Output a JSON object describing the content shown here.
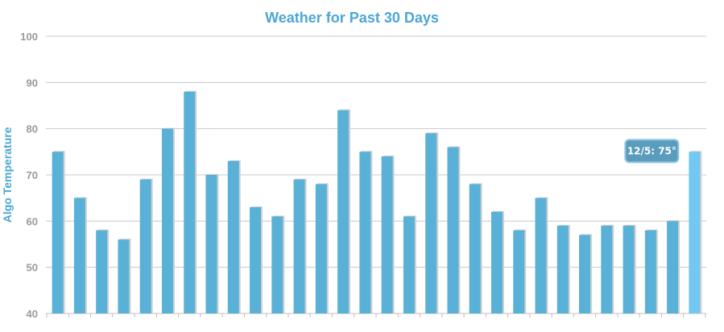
{
  "chart_data": {
    "type": "bar",
    "title": "Weather for Past 30 Days",
    "xlabel": "",
    "ylabel": "Algo Temperature",
    "ylim": [
      40,
      100
    ],
    "yticks": [
      "40",
      "50",
      "60",
      "70",
      "80",
      "90",
      "100"
    ],
    "grid": true,
    "categories": [
      "",
      "",
      "",
      "",
      "",
      "",
      "",
      "",
      "",
      "",
      "",
      "",
      "",
      "",
      "",
      "",
      "",
      "",
      "",
      "",
      "",
      "",
      "",
      "",
      "",
      "",
      "",
      "",
      "",
      ""
    ],
    "values": [
      75,
      65,
      58,
      56,
      69,
      80,
      88,
      70,
      73,
      63,
      61,
      69,
      68,
      84,
      75,
      74,
      61,
      79,
      76,
      68,
      62,
      58,
      65,
      59,
      57,
      59,
      59,
      58,
      60,
      75
    ],
    "highlight_index": 29,
    "tooltip": {
      "text": "12/5: 75°"
    }
  },
  "colors": {
    "title": "#4da6d6",
    "axis_title": "#4da6d6",
    "tick_label": "#999999",
    "grid": "#c8c8c8",
    "axis": "#c0c0c0",
    "bar": "#5ab1d8",
    "bar_highlight": "#72c8f0",
    "bar_shadow": "#d0d0d0",
    "tooltip_bg": "#5a9cbc",
    "tooltip_border": "#8fc6e0",
    "tooltip_text": "#ffffff"
  }
}
